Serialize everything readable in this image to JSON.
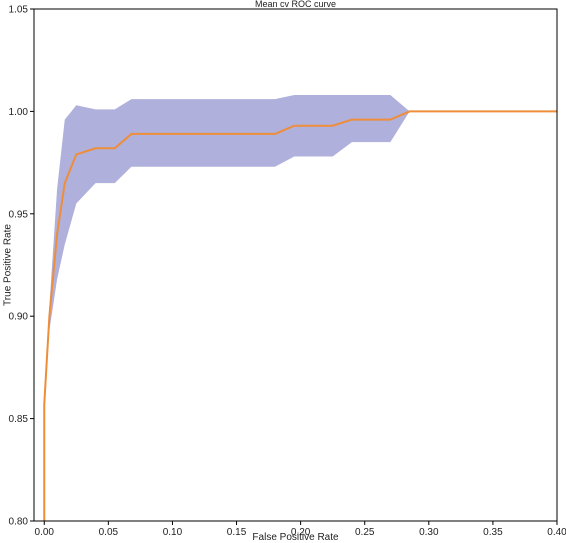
{
  "chart_data": {
    "type": "line",
    "title": "Mean cv ROC curve",
    "xlabel": "False Positive Rate",
    "ylabel": "True Positive Rate",
    "xlim": [
      -0.008,
      0.4
    ],
    "ylim": [
      0.8,
      1.05
    ],
    "x_ticks": [
      0.0,
      0.05,
      0.1,
      0.15,
      0.2,
      0.25,
      0.3,
      0.35,
      0.4
    ],
    "x_tick_labels": [
      "0.00",
      "0.05",
      "0.10",
      "0.15",
      "0.20",
      "0.25",
      "0.30",
      "0.35",
      "0.40"
    ],
    "y_ticks": [
      0.8,
      0.85,
      0.9,
      0.95,
      1.0,
      1.05
    ],
    "y_tick_labels": [
      "0.80",
      "0.85",
      "0.90",
      "0.95",
      "1.00",
      "1.05"
    ],
    "grid": false,
    "legend": "none",
    "colors": {
      "mean_line": "#ee8d3a",
      "band": "#b0b0dc",
      "axes": "#000000"
    },
    "series": [
      {
        "kind": "line",
        "x": [
          0.0,
          0.0,
          0.004,
          0.01,
          0.016,
          0.025,
          0.04,
          0.055,
          0.068,
          0.09,
          0.12,
          0.15,
          0.18,
          0.195,
          0.225,
          0.24,
          0.27,
          0.285,
          0.4
        ],
        "y": [
          0.8,
          0.857,
          0.9,
          0.94,
          0.965,
          0.979,
          0.982,
          0.982,
          0.989,
          0.989,
          0.989,
          0.989,
          0.989,
          0.993,
          0.993,
          0.996,
          0.996,
          1.0,
          1.0
        ]
      },
      {
        "kind": "band",
        "x": [
          0.0,
          0.0,
          0.004,
          0.01,
          0.016,
          0.025,
          0.04,
          0.055,
          0.068,
          0.09,
          0.12,
          0.15,
          0.18,
          0.195,
          0.225,
          0.24,
          0.27,
          0.285,
          0.4
        ],
        "lower": [
          0.8,
          0.857,
          0.893,
          0.918,
          0.935,
          0.955,
          0.965,
          0.965,
          0.973,
          0.973,
          0.973,
          0.973,
          0.973,
          0.978,
          0.978,
          0.985,
          0.985,
          1.0,
          1.0
        ],
        "upper": [
          0.8,
          0.857,
          0.905,
          0.962,
          0.996,
          1.003,
          1.001,
          1.001,
          1.006,
          1.006,
          1.006,
          1.006,
          1.006,
          1.008,
          1.008,
          1.008,
          1.008,
          1.0,
          1.0
        ]
      }
    ]
  }
}
